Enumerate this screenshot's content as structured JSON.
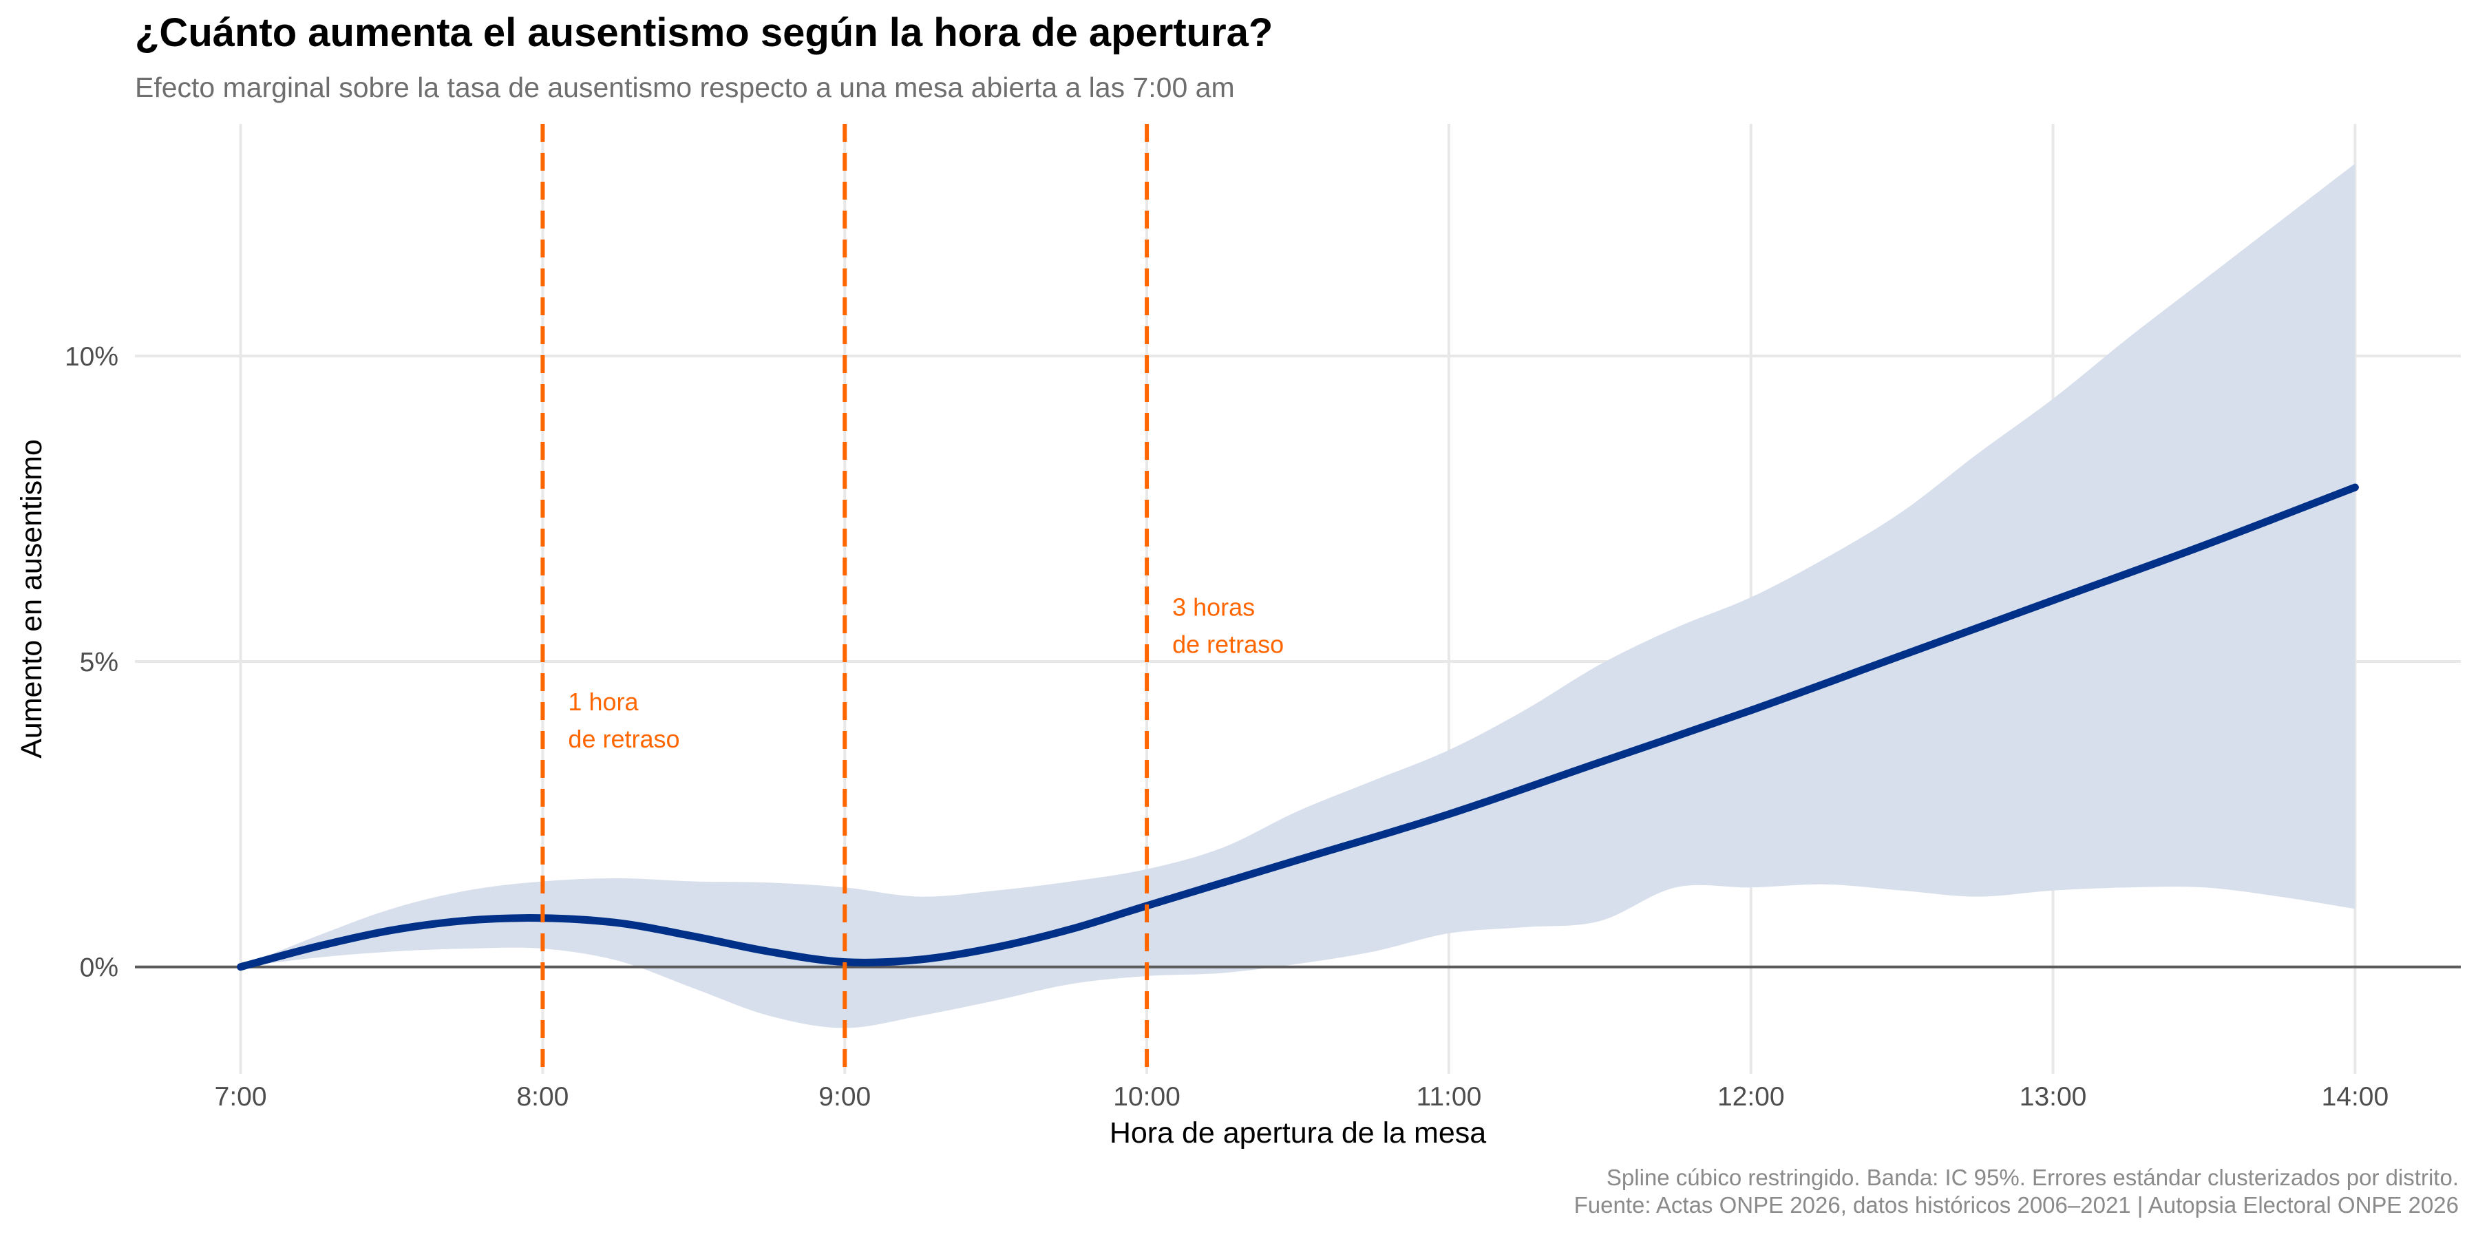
{
  "chart_data": {
    "type": "line",
    "title": "¿Cuánto aumenta el ausentismo según la hora de apertura?",
    "subtitle": "Efecto marginal sobre la tasa de ausentismo respecto a una mesa abierta a las 7:00 am",
    "xlabel": "Hora de apertura de la mesa",
    "ylabel": "Aumento en ausentismo",
    "xlim": [
      6.65,
      14.35
    ],
    "ylim": [
      -1.75,
      13.8
    ],
    "x_ticks": [
      7,
      8,
      9,
      10,
      11,
      12,
      13,
      14
    ],
    "x_tick_labels": [
      "7:00",
      "8:00",
      "9:00",
      "10:00",
      "11:00",
      "12:00",
      "13:00",
      "14:00"
    ],
    "y_ticks": [
      0,
      5,
      10
    ],
    "y_tick_labels": [
      "0%",
      "5%",
      "10%"
    ],
    "series": [
      {
        "name": "Efecto marginal",
        "color": "#003087",
        "x": [
          7.0,
          7.25,
          7.5,
          7.75,
          8.0,
          8.25,
          8.5,
          8.75,
          9.0,
          9.25,
          9.5,
          9.75,
          10.0,
          10.5,
          11.0,
          11.5,
          12.0,
          12.5,
          13.0,
          13.5,
          14.0
        ],
        "values": [
          0.0,
          0.33,
          0.6,
          0.76,
          0.8,
          0.72,
          0.5,
          0.25,
          0.08,
          0.12,
          0.32,
          0.62,
          1.0,
          1.75,
          2.5,
          3.35,
          4.2,
          5.1,
          6.0,
          6.9,
          7.85
        ]
      }
    ],
    "confidence_band": {
      "label": "IC 95%",
      "color": "#d8dfec",
      "x": [
        7.0,
        7.25,
        7.5,
        7.75,
        8.0,
        8.25,
        8.5,
        8.75,
        9.0,
        9.25,
        9.5,
        9.75,
        10.0,
        10.25,
        10.5,
        10.75,
        11.0,
        11.25,
        11.5,
        11.75,
        12.0,
        12.25,
        12.5,
        12.75,
        13.0,
        13.25,
        13.5,
        13.75,
        14.0
      ],
      "lower": [
        0.0,
        0.15,
        0.25,
        0.3,
        0.3,
        0.1,
        -0.35,
        -0.8,
        -1.0,
        -0.8,
        -0.55,
        -0.28,
        -0.15,
        -0.1,
        0.05,
        0.25,
        0.55,
        0.65,
        0.75,
        1.3,
        1.3,
        1.35,
        1.25,
        1.15,
        1.25,
        1.3,
        1.3,
        1.15,
        0.95
      ],
      "upper": [
        0.0,
        0.5,
        0.95,
        1.25,
        1.4,
        1.45,
        1.4,
        1.38,
        1.3,
        1.15,
        1.25,
        1.4,
        1.6,
        1.95,
        2.55,
        3.05,
        3.55,
        4.2,
        4.95,
        5.55,
        6.05,
        6.7,
        7.45,
        8.4,
        9.3,
        10.3,
        11.25,
        12.2,
        13.15
      ]
    },
    "reference_lines": [
      {
        "x": 8,
        "label_line1": "1 hora",
        "label_line2": "de retraso",
        "label_y": 4.2
      },
      {
        "x": 9,
        "label_line1": "",
        "label_line2": "",
        "label_y": null
      },
      {
        "x": 10,
        "label_line1": "3 horas",
        "label_line2": "de retraso",
        "label_y": 5.75
      }
    ],
    "reference_color": "#ff6600",
    "caption_line1": "Spline cúbico restringido. Banda: IC 95%. Errores estándar clusterizados por distrito.",
    "caption_line2": "Fuente: Actas ONPE 2026, datos históricos 2006–2021 | Autopsia Electoral ONPE 2026"
  }
}
